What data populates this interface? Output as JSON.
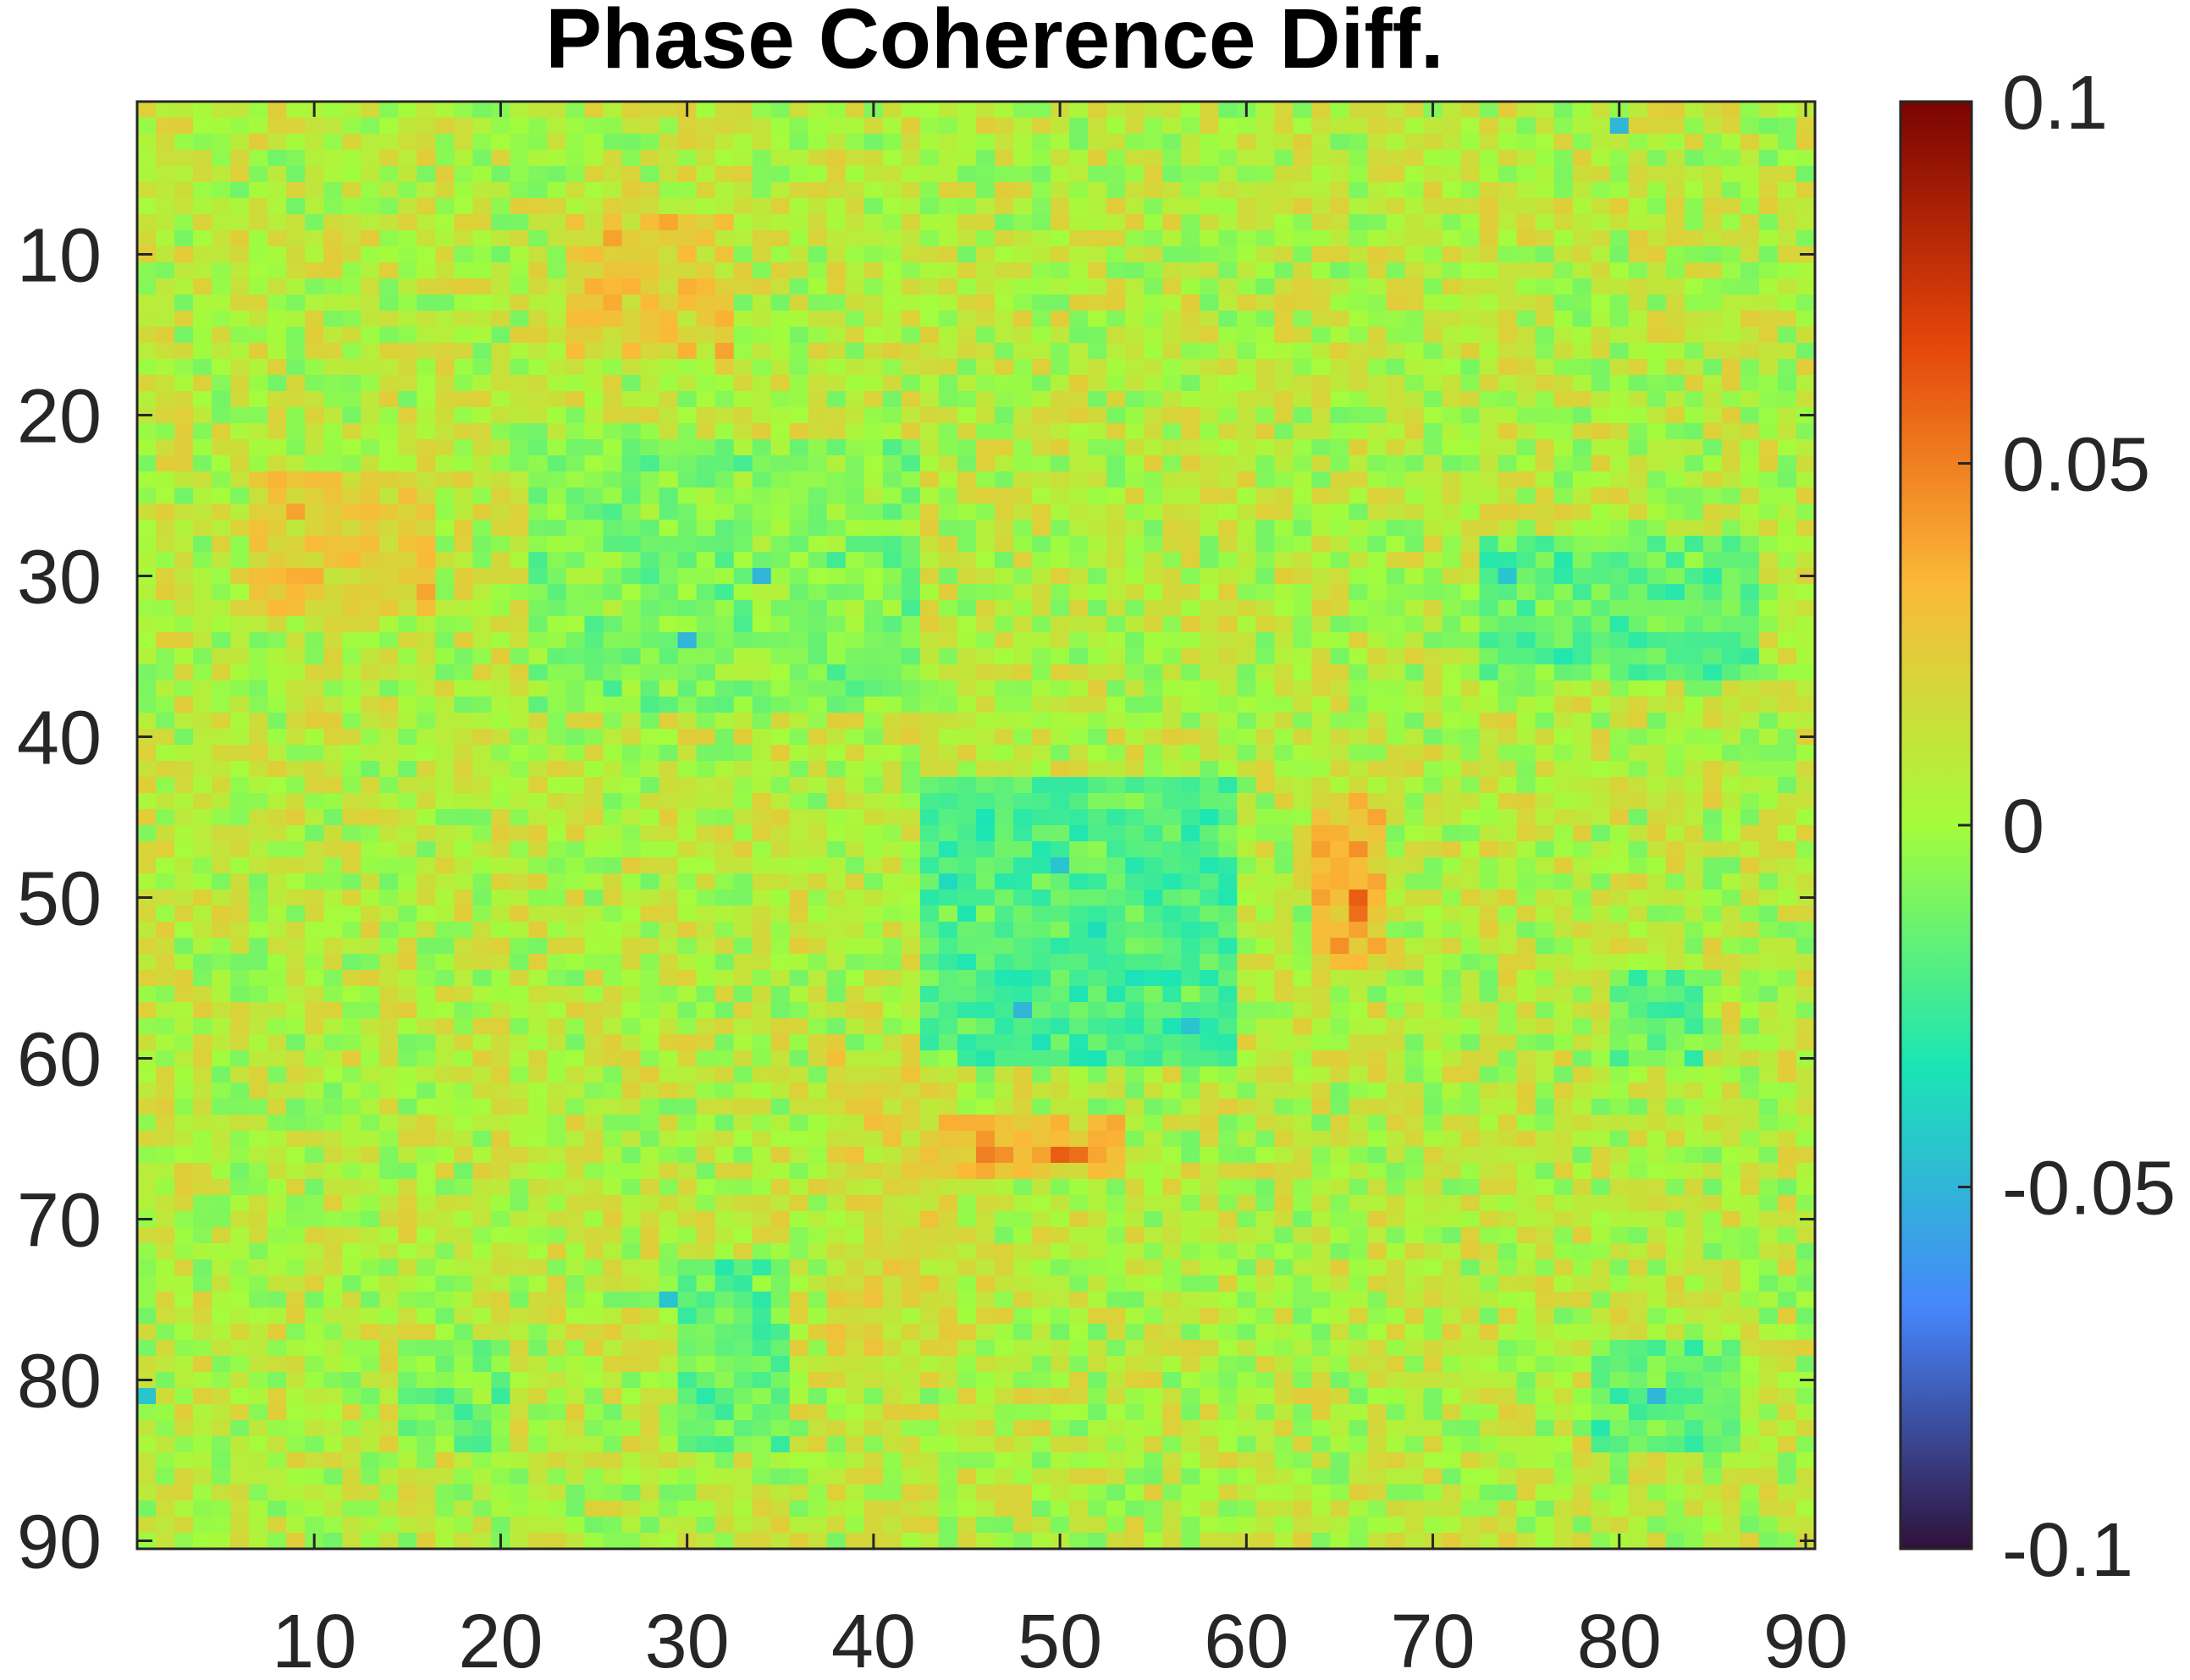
{
  "chart_data": {
    "type": "heatmap",
    "title": "Phase Coherence Diff.",
    "xlabel": "",
    "ylabel": "",
    "n_rows": 90,
    "n_cols": 90,
    "x_ticks": [
      10,
      20,
      30,
      40,
      50,
      60,
      70,
      80,
      90
    ],
    "y_ticks": [
      10,
      20,
      30,
      40,
      50,
      60,
      70,
      80,
      90
    ],
    "x_tick_labels": [
      "10",
      "20",
      "30",
      "40",
      "50",
      "60",
      "70",
      "80",
      "90"
    ],
    "y_tick_labels": [
      "10",
      "20",
      "30",
      "40",
      "50",
      "60",
      "70",
      "80",
      "90"
    ],
    "clim": [
      -0.1,
      0.1
    ],
    "colorbar": {
      "ticks": [
        0.1,
        0.05,
        0,
        -0.05,
        -0.1
      ],
      "tick_labels": [
        "0.1",
        "0.05",
        "0",
        "-0.05",
        "-0.1"
      ],
      "colormap": "turbo",
      "location": "right"
    },
    "colormap_stops": [
      "#30123b",
      "#4686fb",
      "#1be5b5",
      "#a4fc3c",
      "#fbb938",
      "#e4460a",
      "#7a0403"
    ],
    "value_summary": "Mostly near zero (about -0.02 to 0.03); negative cluster near rows/cols 43-60 x 43-60; positive hotspots near (66,46-52) and (50,66)",
    "notable_cells": [
      {
        "row": 66,
        "col": 46,
        "value": 0.05
      },
      {
        "row": 66,
        "col": 47,
        "value": 0.045
      },
      {
        "row": 66,
        "col": 50,
        "value": 0.06
      },
      {
        "row": 66,
        "col": 51,
        "value": 0.055
      },
      {
        "row": 50,
        "col": 66,
        "value": 0.06
      },
      {
        "row": 51,
        "col": 66,
        "value": 0.055
      },
      {
        "row": 47,
        "col": 66,
        "value": 0.045
      },
      {
        "row": 26,
        "col": 9,
        "value": 0.04
      },
      {
        "row": 9,
        "col": 26,
        "value": 0.04
      },
      {
        "row": 30,
        "col": 34,
        "value": -0.05
      },
      {
        "row": 34,
        "col": 30,
        "value": -0.05
      },
      {
        "row": 30,
        "col": 74,
        "value": -0.045
      },
      {
        "row": 2,
        "col": 80,
        "value": -0.05
      },
      {
        "row": 81,
        "col": 82,
        "value": -0.05
      },
      {
        "row": 81,
        "col": 1,
        "value": -0.045
      },
      {
        "row": 48,
        "col": 50,
        "value": -0.045
      },
      {
        "row": 57,
        "col": 48,
        "value": -0.05
      },
      {
        "row": 58,
        "col": 57,
        "value": -0.045
      },
      {
        "row": 75,
        "col": 29,
        "value": -0.045
      }
    ],
    "regions": [
      {
        "rows": [
          43,
          60
        ],
        "cols": [
          43,
          59
        ],
        "value": -0.025
      },
      {
        "rows": [
          22,
          38
        ],
        "cols": [
          22,
          42
        ],
        "value": -0.012
      },
      {
        "rows": [
          28,
          36
        ],
        "cols": [
          73,
          87
        ],
        "value": -0.02
      },
      {
        "rows": [
          78,
          84
        ],
        "cols": [
          79,
          86
        ],
        "value": -0.02
      },
      {
        "rows": [
          55,
          60
        ],
        "cols": [
          80,
          84
        ],
        "value": -0.02
      },
      {
        "rows": [
          73,
          84
        ],
        "cols": [
          30,
          35
        ],
        "value": -0.02
      },
      {
        "rows": [
          78,
          84
        ],
        "cols": [
          15,
          20
        ],
        "value": -0.015
      },
      {
        "rows": [
          8,
          16
        ],
        "cols": [
          24,
          32
        ],
        "value": 0.02
      },
      {
        "rows": [
          24,
          32
        ],
        "cols": [
          7,
          16
        ],
        "value": 0.02
      },
      {
        "rows": [
          44,
          54
        ],
        "cols": [
          64,
          67
        ],
        "value": 0.025
      },
      {
        "rows": [
          64,
          67
        ],
        "cols": [
          44,
          53
        ],
        "value": 0.025
      },
      {
        "rows": [
          60,
          80
        ],
        "cols": [
          38,
          44
        ],
        "value": 0.012
      }
    ]
  }
}
